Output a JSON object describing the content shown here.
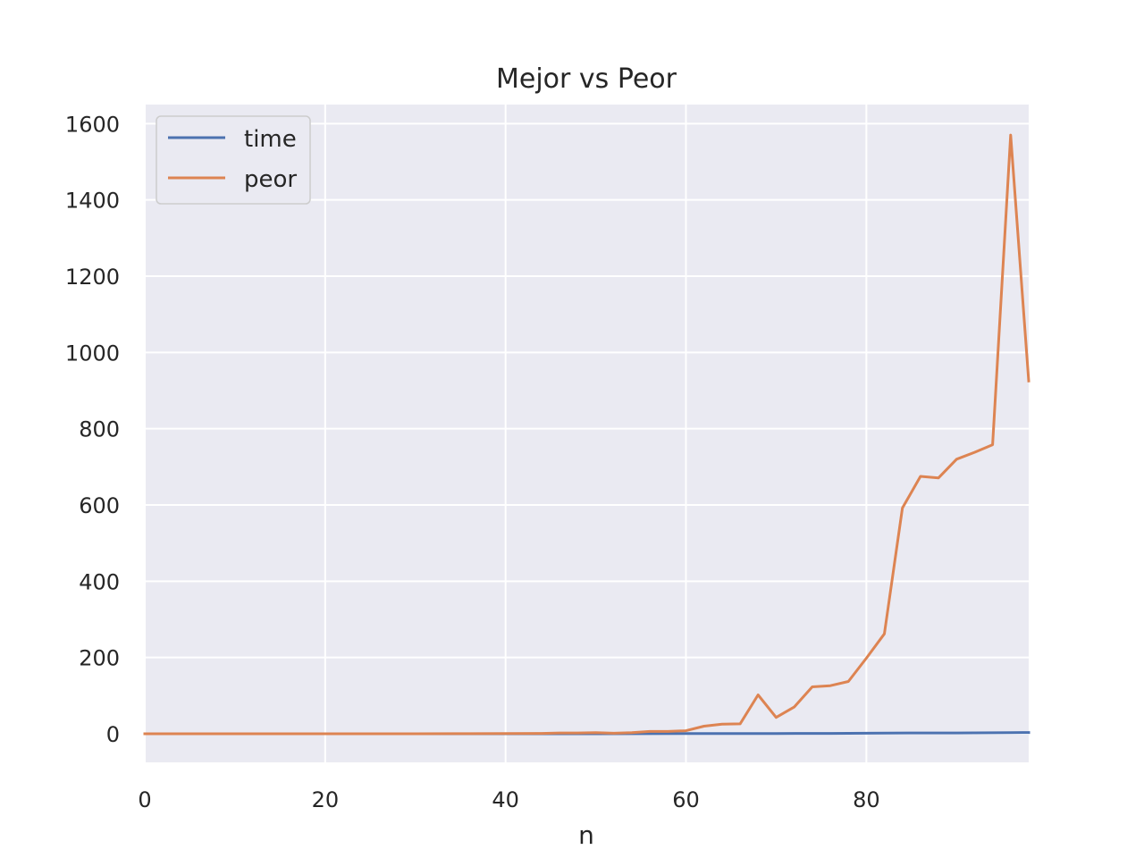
{
  "chart_data": {
    "type": "line",
    "title": "Mejor vs Peor",
    "xlabel": "n",
    "ylabel": "",
    "xlim": [
      0,
      98
    ],
    "ylim": [
      -75,
      1650
    ],
    "xticks": [
      0,
      20,
      40,
      60,
      80
    ],
    "yticks": [
      0,
      200,
      400,
      600,
      800,
      1000,
      1200,
      1400,
      1600
    ],
    "grid": true,
    "legend_position": "top-left",
    "background": "#eaeaf2",
    "series": [
      {
        "name": "time",
        "color": "#4c72b0",
        "x": [
          0,
          10,
          20,
          30,
          40,
          50,
          60,
          66,
          70,
          76,
          80,
          86,
          90,
          94,
          96,
          98
        ],
        "y": [
          0,
          0,
          0,
          0,
          0,
          0.1,
          0.4,
          0.6,
          0.8,
          1.0,
          1.5,
          2.0,
          2.2,
          2.6,
          3.0,
          3.2
        ]
      },
      {
        "name": "peor",
        "color": "#dd8452",
        "x": [
          0,
          10,
          20,
          30,
          36,
          40,
          44,
          46,
          48,
          50,
          52,
          54,
          56,
          58,
          60,
          62,
          64,
          66,
          68,
          70,
          72,
          74,
          76,
          78,
          80,
          82,
          84,
          86,
          88,
          90,
          92,
          94,
          96,
          98
        ],
        "y": [
          0,
          0,
          0,
          0,
          0.2,
          0.5,
          1,
          2,
          2,
          3,
          1.5,
          3,
          6,
          6,
          8,
          20,
          25,
          26,
          102,
          43,
          70,
          123,
          126,
          137,
          198,
          262,
          592,
          675,
          671,
          720,
          738,
          758,
          1570,
          925
        ]
      }
    ]
  }
}
